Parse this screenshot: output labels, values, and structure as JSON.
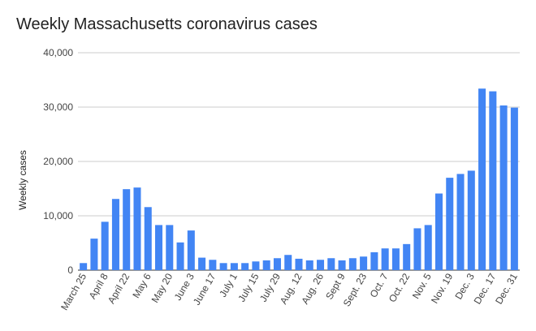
{
  "chart_data": {
    "type": "bar",
    "title": "Weekly Massachusetts coronavirus cases",
    "xlabel": "",
    "ylabel": "Weekly cases",
    "ylim": [
      0,
      40000
    ],
    "y_ticks": [
      "0",
      "10,000",
      "20,000",
      "30,000",
      "40,000"
    ],
    "y_tick_values": [
      0,
      10000,
      20000,
      30000,
      40000
    ],
    "grid": true,
    "bar_color": "#4285f4",
    "categories": [
      "March 25",
      "April 1",
      "April 8",
      "April 15",
      "April 22",
      "April 29",
      "May 6",
      "May 13",
      "May 20",
      "May 27",
      "June 3",
      "June 10",
      "June 17",
      "June 24",
      "July 1",
      "July 8",
      "July 15",
      "July 22",
      "July 29",
      "Aug. 5",
      "Aug. 12",
      "Aug. 19",
      "Aug. 26",
      "Sept. 2",
      "Sept 9",
      "Sept. 16",
      "Sept. 23",
      "Sept. 30",
      "Oct. 7",
      "Oct. 14",
      "Oct. 22",
      "Oct. 29",
      "Nov. 5",
      "Nov. 12",
      "Nov. 19",
      "Nov. 26",
      "Dec. 3",
      "Dec. 10",
      "Dec. 17",
      "Dec. 24",
      "Dec. 31"
    ],
    "shown_labels": [
      "March 25",
      "April 8",
      "April 22",
      "May 6",
      "May 20",
      "June 3",
      "June 17",
      "July 1",
      "July 15",
      "July 29",
      "Aug. 12",
      "Aug. 26",
      "Sept 9",
      "Sept. 23",
      "Oct. 7",
      "Oct. 22",
      "Nov. 5",
      "Nov. 19",
      "Dec. 3",
      "Dec. 17",
      "Dec. 31"
    ],
    "values": [
      1300,
      5800,
      8900,
      13100,
      14900,
      15200,
      11600,
      8300,
      8300,
      5100,
      7300,
      2300,
      1900,
      1300,
      1300,
      1300,
      1600,
      1800,
      2200,
      2800,
      2100,
      1800,
      1900,
      2200,
      1800,
      2200,
      2500,
      3300,
      4000,
      4000,
      4800,
      7700,
      8300,
      14100,
      17000,
      17700,
      18300,
      33400,
      32900,
      30300,
      29900
    ]
  }
}
